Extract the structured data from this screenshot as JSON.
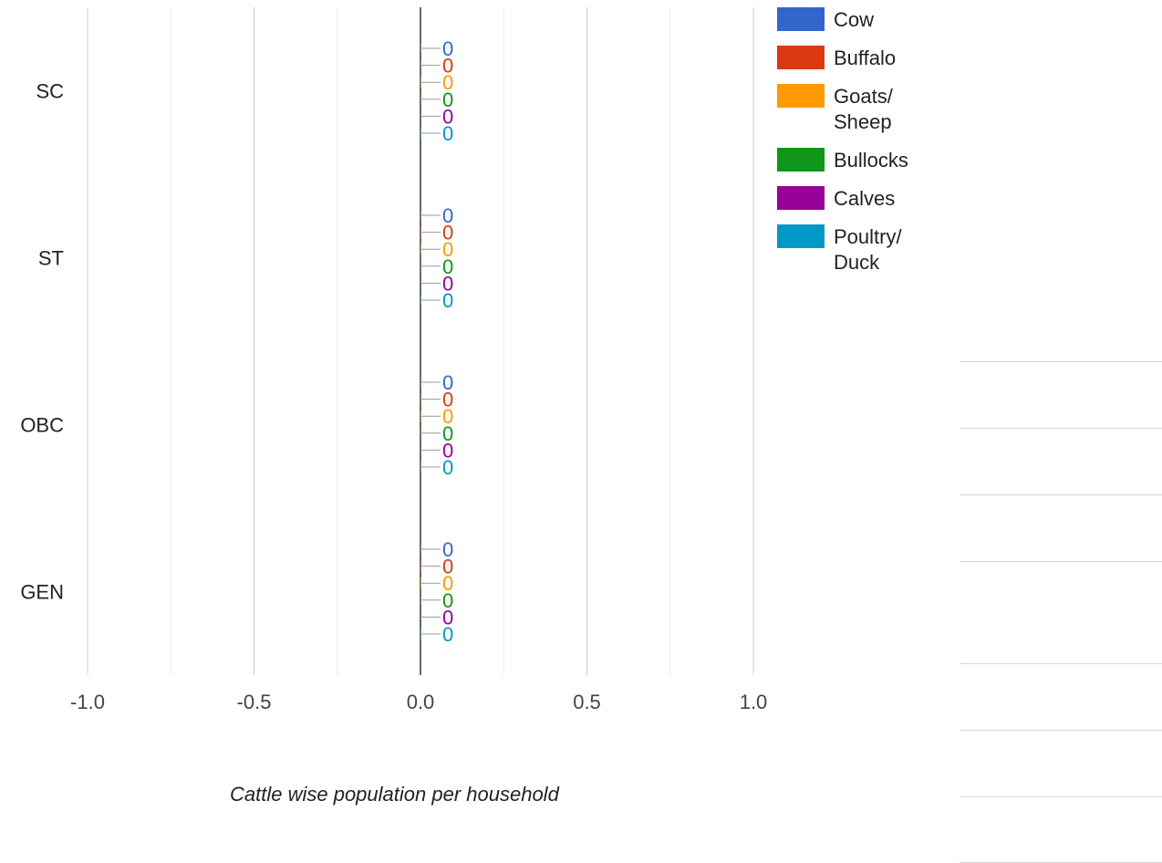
{
  "chart_data": {
    "type": "bar",
    "orientation": "horizontal",
    "categories": [
      "SC",
      "ST",
      "OBC",
      "GEN"
    ],
    "series": [
      {
        "name": "Cow",
        "color": "#3366cc",
        "values": [
          0,
          0,
          0,
          0
        ],
        "labels": [
          "0",
          "0",
          "0",
          "0"
        ]
      },
      {
        "name": "Buffalo",
        "color": "#dc3912",
        "values": [
          0,
          0,
          0,
          0
        ],
        "labels": [
          "0",
          "0",
          "0",
          "0"
        ]
      },
      {
        "name": "Goats/ Sheep",
        "color": "#ff9900",
        "values": [
          0,
          0,
          0,
          0
        ],
        "labels": [
          "0",
          "0",
          "0",
          "0"
        ]
      },
      {
        "name": "Bullocks",
        "color": "#109618",
        "values": [
          0,
          0,
          0,
          0
        ],
        "labels": [
          "0",
          "0",
          "0",
          "0"
        ]
      },
      {
        "name": "Calves",
        "color": "#990099",
        "values": [
          0,
          0,
          0,
          0
        ],
        "labels": [
          "0",
          "0",
          "0",
          "0"
        ]
      },
      {
        "name": "Poultry/ Duck",
        "color": "#0099c6",
        "values": [
          0,
          0,
          0,
          0
        ],
        "labels": [
          "0",
          "0",
          "0",
          "0"
        ]
      }
    ],
    "xlim": [
      -1.0,
      1.0
    ],
    "x_ticks": [
      -1.0,
      -0.5,
      0.0,
      0.5,
      1.0
    ],
    "x_tick_labels": [
      "-1.0",
      "-0.5",
      "0.0",
      "0.5",
      "1.0"
    ],
    "xlabel": "Cattle wise population per household",
    "legend_position": "top-right",
    "grid": true
  }
}
